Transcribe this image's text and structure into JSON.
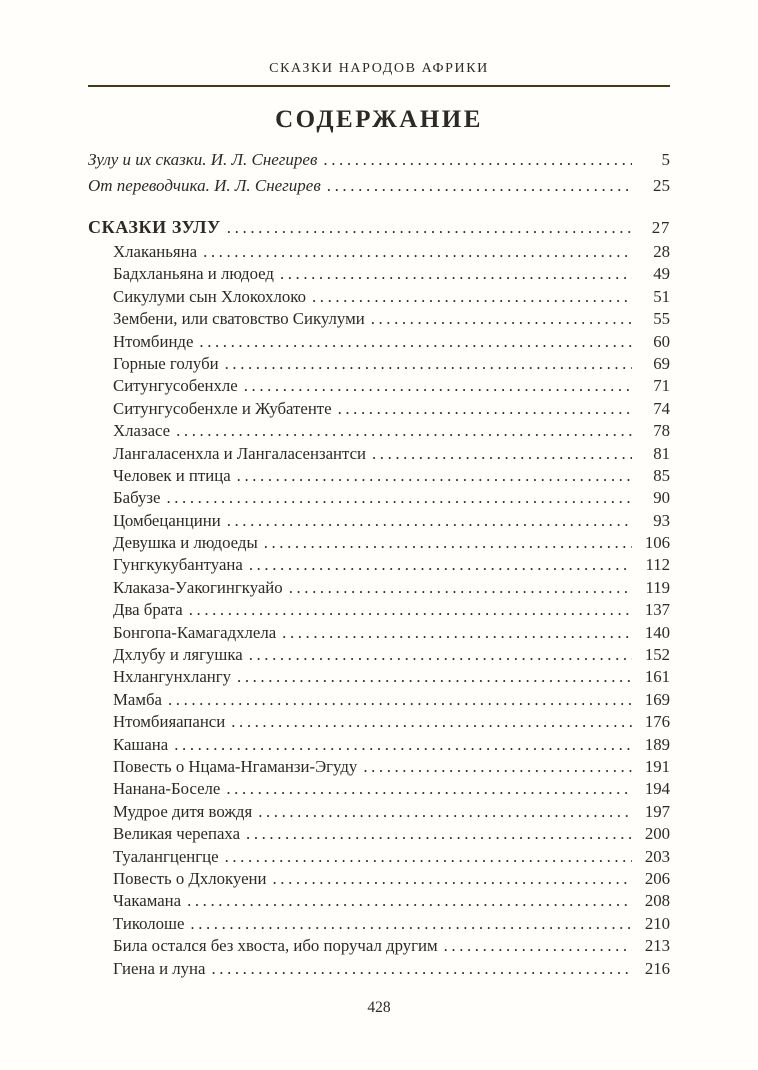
{
  "colors": {
    "paper": "#fffefb",
    "ink": "#2d2a26",
    "rule": "#473818"
  },
  "header": {
    "running_title": "СКАЗКИ НАРОДОВ АФРИКИ"
  },
  "title": "СОДЕРЖАНИЕ",
  "front_matter": [
    {
      "label": "Зулу и их сказки. И. Л. Снегирев",
      "page": "5"
    },
    {
      "label": "От переводчика. И. Л. Снегирев",
      "page": "25"
    }
  ],
  "section": {
    "label": "СКАЗКИ ЗУЛУ",
    "page": "27"
  },
  "entries": [
    {
      "label": "Хлаканьяна",
      "page": "28"
    },
    {
      "label": "Бадхланьяна и людоед",
      "page": "49"
    },
    {
      "label": "Сикулуми сын Хлокохлоко",
      "page": "51"
    },
    {
      "label": "Зембени, или сватовство Сикулуми",
      "page": "55"
    },
    {
      "label": "Нтомбинде",
      "page": "60"
    },
    {
      "label": "Горные голуби",
      "page": "69"
    },
    {
      "label": "Ситунгусобенхле",
      "page": "71"
    },
    {
      "label": "Ситунгусобенхле и Жубатенте",
      "page": "74"
    },
    {
      "label": "Хлазасе",
      "page": "78"
    },
    {
      "label": "Лангаласенхла и Лангаласензантси",
      "page": "81"
    },
    {
      "label": "Человек и птица",
      "page": "85"
    },
    {
      "label": "Бабузе",
      "page": "90"
    },
    {
      "label": "Цомбецанцини",
      "page": "93"
    },
    {
      "label": "Девушка и людоеды",
      "page": "106"
    },
    {
      "label": "Гунгкукубантуана",
      "page": "112"
    },
    {
      "label": "Клаказа-Уакогингкуайо",
      "page": "119"
    },
    {
      "label": "Два брата",
      "page": "137"
    },
    {
      "label": "Бонгопа-Камагадхлела",
      "page": "140"
    },
    {
      "label": "Дхлубу и лягушка",
      "page": "152"
    },
    {
      "label": "Нхлангунхлангу",
      "page": "161"
    },
    {
      "label": "Мамба",
      "page": "169"
    },
    {
      "label": "Нтомбияапанси",
      "page": "176"
    },
    {
      "label": "Кашана",
      "page": "189"
    },
    {
      "label": "Повесть о Нцама-Нгаманзи-Эгуду",
      "page": "191"
    },
    {
      "label": "Нанана-Боселе",
      "page": "194"
    },
    {
      "label": "Мудрое дитя вождя",
      "page": "197"
    },
    {
      "label": "Великая черепаха",
      "page": "200"
    },
    {
      "label": "Туалангценгце",
      "page": "203"
    },
    {
      "label": "Повесть о Дхлокуени",
      "page": "206"
    },
    {
      "label": "Чакамана",
      "page": "208"
    },
    {
      "label": "Тиколоше",
      "page": "210"
    },
    {
      "label": "Била остался без хвоста, ибо поручал другим",
      "page": "213"
    },
    {
      "label": "Гиена и луна",
      "page": "216"
    }
  ],
  "footer": {
    "page_number": "428"
  }
}
